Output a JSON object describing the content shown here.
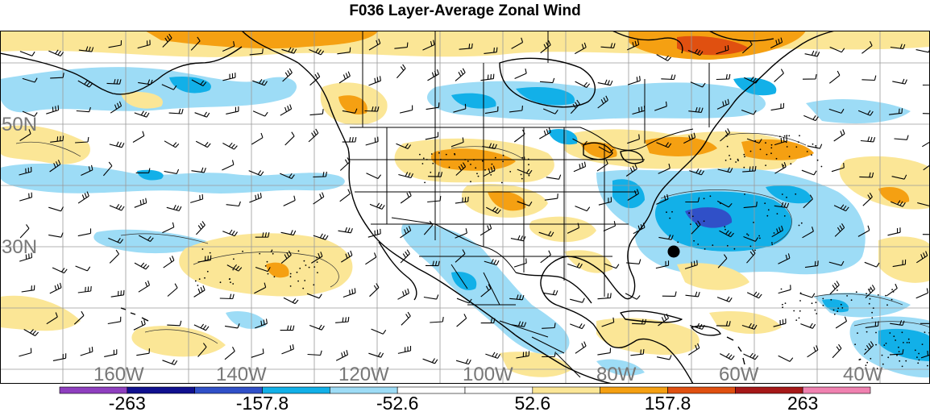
{
  "title": "F036 Layer-Average Zonal Wind",
  "colors": {
    "ocean": "#ffffff",
    "grid": "#9a9a9a",
    "coast": "#000000",
    "label": "#777777",
    "marker": "#000000"
  },
  "lat_labels": [
    {
      "id": "lat-50n",
      "text": "50N"
    },
    {
      "id": "lat-30n",
      "text": "30N"
    }
  ],
  "lon_labels": [
    {
      "id": "lon-160w",
      "text": "160W"
    },
    {
      "id": "lon-140w",
      "text": "140W"
    },
    {
      "id": "lon-120w",
      "text": "120W"
    },
    {
      "id": "lon-100w",
      "text": "100W"
    },
    {
      "id": "lon-80w",
      "text": "80W"
    },
    {
      "id": "lon-60w",
      "text": "60W"
    },
    {
      "id": "lon-40w",
      "text": "40W"
    }
  ],
  "colorbar": {
    "colors": [
      "#8f3fbf",
      "#10108f",
      "#3050c8",
      "#12b0e8",
      "#9ddcf6",
      "#ffffff",
      "#ffffff",
      "#fbe696",
      "#f5a012",
      "#e05010",
      "#a61818",
      "#f081b0"
    ],
    "labels": [
      "-263",
      "-157.8",
      "-52.6",
      "52.6",
      "157.8",
      "263"
    ]
  }
}
